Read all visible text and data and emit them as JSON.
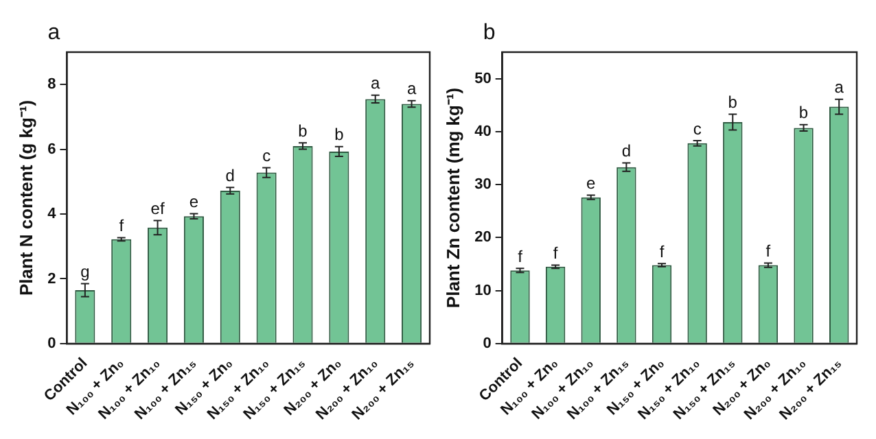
{
  "chart_data": [
    {
      "type": "bar",
      "title": "a",
      "ylabel": "Plant N content (g kg⁻¹)",
      "categories": [
        "Control",
        "N₁₀₀ + Zn₀",
        "N₁₀₀ + Zn₁₀",
        "N₁₀₀ + Zn₁₅",
        "N₁₅₀ + Zn₀",
        "N₁₅₀ + Zn₁₀",
        "N₁₅₀ + Zn₁₅",
        "N₂₀₀ + Zn₀",
        "N₂₀₀ + Zn₁₀",
        "N₂₀₀ + Zn₁₅"
      ],
      "values": [
        1.65,
        3.22,
        3.58,
        3.93,
        4.72,
        5.28,
        6.1,
        5.93,
        7.55,
        7.4
      ],
      "errors": [
        0.2,
        0.05,
        0.22,
        0.08,
        0.1,
        0.15,
        0.1,
        0.15,
        0.12,
        0.1
      ],
      "value_labels": [
        "g",
        "f",
        "ef",
        "e",
        "d",
        "c",
        "b",
        "b",
        "a",
        "a"
      ],
      "color": "#72c495",
      "ylim": [
        0,
        9
      ],
      "yticks": [
        0,
        2,
        4,
        6,
        8
      ],
      "grid": false,
      "legend": false
    },
    {
      "type": "bar",
      "title": "b",
      "ylabel": "Plant Zn content (mg kg⁻¹)",
      "categories": [
        "Control",
        "N₁₀₀ + Zn₀",
        "N₁₀₀ + Zn₁₀",
        "N₁₀₀ + Zn₁₅",
        "N₁₅₀ + Zn₀",
        "N₁₅₀ + Zn₁₀",
        "N₁₅₀ + Zn₁₅",
        "N₂₀₀ + Zn₀",
        "N₂₀₀ + Zn₁₀",
        "N₂₀₀ + Zn₁₅"
      ],
      "values": [
        13.8,
        14.5,
        27.6,
        33.3,
        14.8,
        37.8,
        41.8,
        14.8,
        40.7,
        44.7
      ],
      "errors": [
        0.4,
        0.3,
        0.4,
        0.8,
        0.3,
        0.5,
        1.5,
        0.4,
        0.6,
        1.4
      ],
      "value_labels": [
        "f",
        "f",
        "e",
        "d",
        "f",
        "c",
        "b",
        "f",
        "b",
        "a"
      ],
      "color": "#72c495",
      "ylim": [
        0,
        55
      ],
      "yticks": [
        0,
        10,
        20,
        30,
        40,
        50
      ],
      "grid": false,
      "legend": false
    }
  ]
}
